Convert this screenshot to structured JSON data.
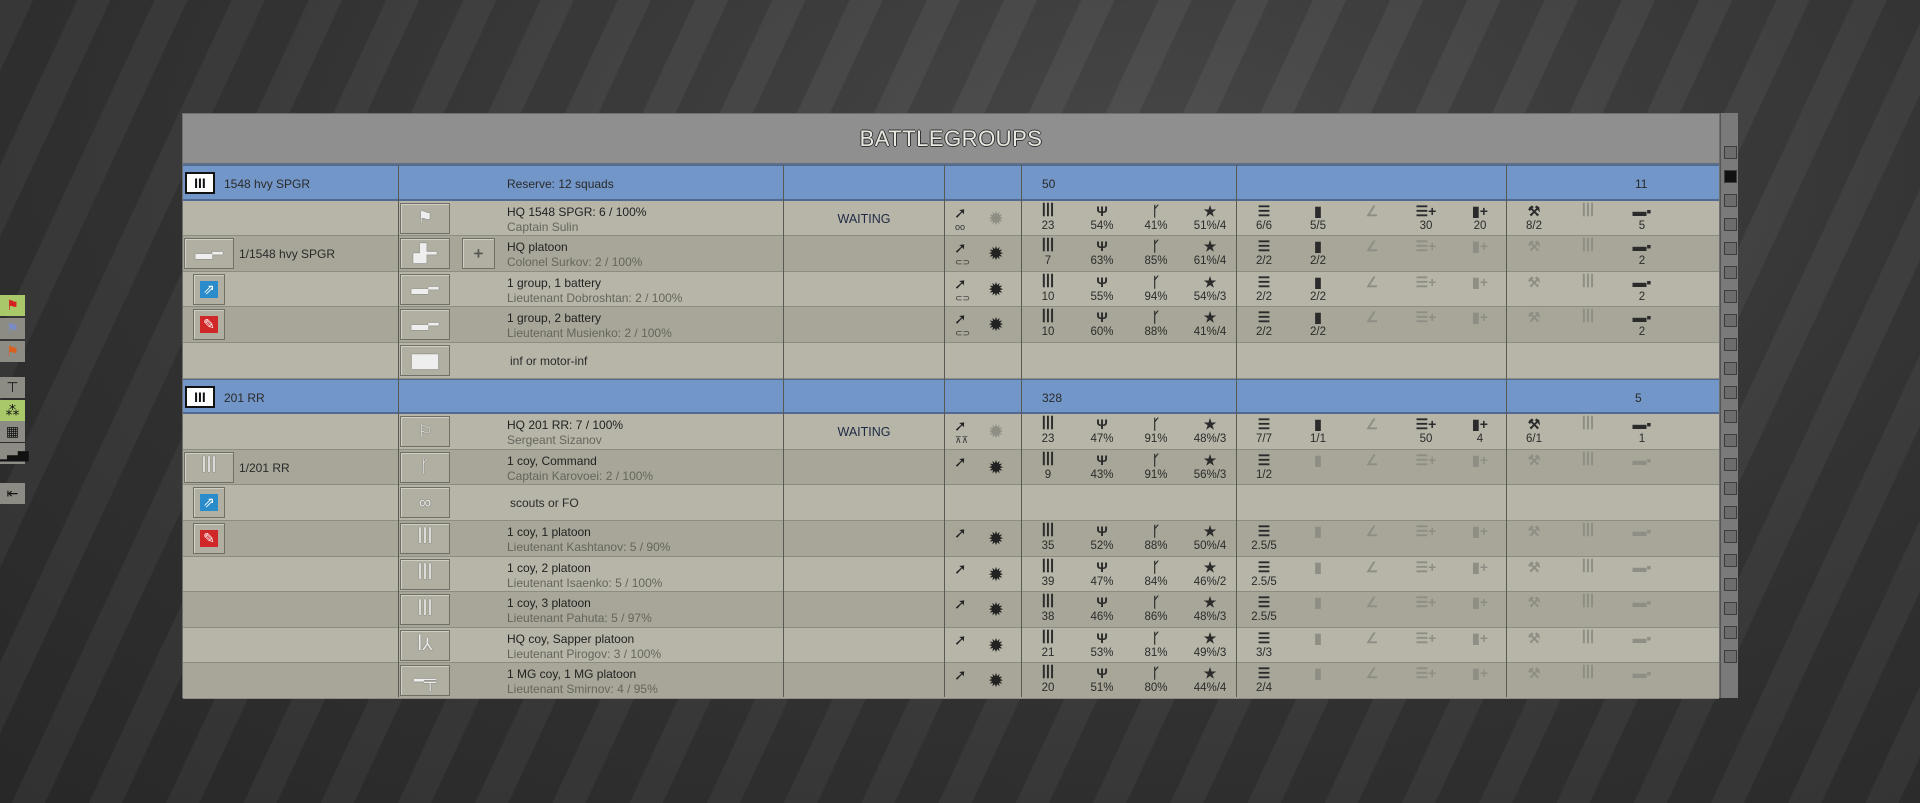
{
  "title": "BATTLEGROUPS",
  "stat_icons": [
    "men",
    "morale",
    "fitness",
    "experience",
    "ammo",
    "fuel",
    "artillery",
    "ammo-supply",
    "fuel-supply",
    "engineering",
    "reinforcements",
    "transport"
  ],
  "colors": {
    "group_header": "#7296c8",
    "row_light": "#b6b5a8",
    "row_dark": "#a7a698",
    "toolbar_active": "#a8c86a"
  },
  "toolbar": [
    {
      "icon": "red-flag-icon",
      "active": true
    },
    {
      "icon": "blue-flag-icon",
      "active": false
    },
    {
      "icon": "orange-flag-icon",
      "active": false
    },
    {
      "icon": "org-chart-icon",
      "active": false
    },
    {
      "icon": "unit-tree-icon",
      "active": true
    },
    {
      "icon": "grid-icon",
      "active": false
    },
    {
      "icon": "signal-bars-icon",
      "active": false
    },
    {
      "icon": "exit-icon",
      "active": false
    }
  ],
  "groups": [
    {
      "name": "1548 hvy SPGR",
      "reserve": "Reserve: 12  squads",
      "count": "50",
      "count2": "11",
      "rows": [
        {
          "col1": null,
          "icon": "flag-hq-icon",
          "name": "HQ 1548 SPGR: 6 / 100%",
          "leader": "Captain Sulin",
          "status": "WAITING",
          "move": "wheels",
          "fire": false,
          "stats": [
            "23",
            "54%",
            "41%",
            "51%/4",
            "6/6",
            "5/5",
            "",
            "30",
            "20",
            "8/2",
            "",
            "5"
          ]
        },
        {
          "col1": {
            "type": "unit",
            "label": "1/1548 hvy SPGR",
            "icon": "spg-icon"
          },
          "plus": true,
          "icon": "spg-hq-icon",
          "name": "HQ platoon",
          "leader": "Colonel Surkov: 2 / 100%",
          "status": "",
          "move": "tracks",
          "fire": true,
          "stats": [
            "7",
            "63%",
            "85%",
            "61%/4",
            "2/2",
            "2/2",
            "",
            "",
            "",
            "",
            "",
            "2"
          ]
        },
        {
          "col1": {
            "type": "blue"
          },
          "icon": "spg-icon",
          "name": "1 group, 1 battery",
          "leader": "Lieutenant Dobroshtan: 2 / 100%",
          "status": "",
          "move": "tracks",
          "fire": true,
          "stats": [
            "10",
            "55%",
            "94%",
            "54%/3",
            "2/2",
            "2/2",
            "",
            "",
            "",
            "",
            "",
            "2"
          ]
        },
        {
          "col1": {
            "type": "red"
          },
          "icon": "spg-icon",
          "name": "1 group, 2 battery",
          "leader": "Lieutenant Musienko: 2 / 100%",
          "status": "",
          "move": "tracks",
          "fire": true,
          "stats": [
            "10",
            "60%",
            "88%",
            "41%/4",
            "2/2",
            "2/2",
            "",
            "",
            "",
            "",
            "",
            "2"
          ]
        },
        {
          "col1": null,
          "icon": "halftrack-icon",
          "name": "",
          "leader": "",
          "slot": "inf or motor-inf"
        }
      ]
    },
    {
      "name": "201 RR",
      "reserve": "",
      "count": "328",
      "count2": "5",
      "rows": [
        {
          "col1": null,
          "icon": "flag-icon",
          "name": "HQ 201 RR: 7 / 100%",
          "leader": "Sergeant Sizanov",
          "status": "WAITING",
          "move": "legs",
          "fire": false,
          "stats": [
            "23",
            "47%",
            "91%",
            "48%/3",
            "7/7",
            "1/1",
            "",
            "50",
            "4",
            "6/1",
            "",
            "1"
          ]
        },
        {
          "col1": {
            "type": "unit",
            "label": "1/201 RR",
            "icon": "infantry-icon"
          },
          "icon": "officer-icon",
          "name": "1 coy, Command",
          "leader": "Captain Karovoei: 2 / 100%",
          "status": "",
          "move": "foot",
          "fire": true,
          "stats": [
            "9",
            "43%",
            "91%",
            "56%/3",
            "1/2",
            "",
            "",
            "",
            "",
            "",
            "",
            ""
          ]
        },
        {
          "col1": {
            "type": "blue"
          },
          "icon": "binoculars-icon",
          "name": "",
          "leader": "",
          "slot": "scouts or FO"
        },
        {
          "col1": {
            "type": "red"
          },
          "icon": "infantry-icon",
          "name": "1 coy, 1 platoon",
          "leader": "Lieutenant Kashtanov: 5 / 90%",
          "status": "",
          "move": "foot",
          "fire": true,
          "stats": [
            "35",
            "52%",
            "88%",
            "50%/4",
            "2.5/5",
            "",
            "",
            "",
            "",
            "",
            "",
            ""
          ]
        },
        {
          "col1": null,
          "icon": "infantry-icon",
          "name": "1 coy, 2 platoon",
          "leader": "Lieutenant Isaenko: 5 / 100%",
          "status": "",
          "move": "foot",
          "fire": true,
          "stats": [
            "39",
            "47%",
            "84%",
            "46%/2",
            "2.5/5",
            "",
            "",
            "",
            "",
            "",
            "",
            ""
          ]
        },
        {
          "col1": null,
          "icon": "infantry-icon",
          "name": "1 coy, 3 platoon",
          "leader": "Lieutenant Pahuta: 5 / 97%",
          "status": "",
          "move": "foot",
          "fire": true,
          "stats": [
            "38",
            "46%",
            "86%",
            "48%/3",
            "2.5/5",
            "",
            "",
            "",
            "",
            "",
            "",
            ""
          ]
        },
        {
          "col1": null,
          "icon": "sapper-icon",
          "name": "HQ coy, Sapper platoon",
          "leader": "Lieutenant Pirogov: 3 / 100%",
          "status": "",
          "move": "foot",
          "fire": true,
          "stats": [
            "21",
            "53%",
            "81%",
            "49%/3",
            "3/3",
            "",
            "",
            "",
            "",
            "",
            "",
            ""
          ]
        },
        {
          "col1": null,
          "icon": "machine-gun-icon",
          "name": "1 MG coy, 1 MG platoon",
          "leader": "Lieutenant Smirnov: 4 / 95%",
          "status": "",
          "move": "foot",
          "fire": true,
          "stats": [
            "20",
            "51%",
            "80%",
            "44%/4",
            "2/4",
            "",
            "",
            "",
            "",
            "",
            "",
            ""
          ]
        }
      ]
    }
  ]
}
